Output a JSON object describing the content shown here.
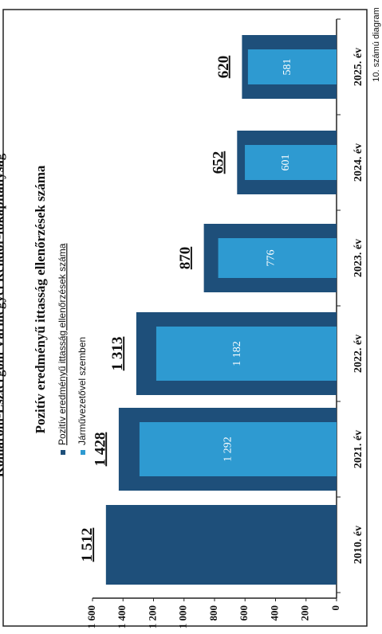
{
  "header_partial": "Komárom-Esztergom Vármegyei Rendőr-főkapitányság",
  "caption": "10. számú diagram",
  "chart_data": {
    "type": "bar",
    "orientation": "vertical",
    "title": "Pozitív eredményű ittasság ellenőrzések száma",
    "categories": [
      "2010. év",
      "2021. év",
      "2022. év",
      "2023. év",
      "2024. év",
      "2025. év"
    ],
    "series": [
      {
        "name": "Pozitív eredményű ittasság ellenőrzések száma",
        "values": [
          1512,
          1428,
          1313,
          870,
          652,
          620
        ],
        "color": "#1e4f7a",
        "labels": [
          "1 512",
          "1 428",
          "1 313",
          "870",
          "652",
          "620"
        ]
      },
      {
        "name": "Járművezetővel szemben",
        "values": [
          null,
          1292,
          1182,
          776,
          601,
          581
        ],
        "color": "#2e9ad1",
        "labels": [
          "",
          "1 292",
          "1 182",
          "776",
          "601",
          "581"
        ]
      }
    ],
    "ylim": [
      0,
      1600
    ],
    "yticks": [
      0,
      200,
      400,
      600,
      800,
      1000,
      1200,
      1400,
      1600
    ],
    "ytick_labels": [
      "0",
      "200",
      "400",
      "600",
      "800",
      "1 000",
      "1 200",
      "1 400",
      "1 600"
    ],
    "grid": false,
    "legend_position": "top-left"
  }
}
